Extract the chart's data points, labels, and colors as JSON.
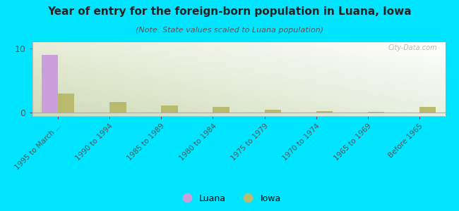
{
  "title": "Year of entry for the foreign-born population in Luana, Iowa",
  "subtitle": "(Note: State values scaled to Luana population)",
  "categories": [
    "1995 to March ...",
    "1990 to 1994",
    "1985 to 1989",
    "1980 to 1984",
    "1975 to 1979",
    "1970 to 1974",
    "1965 to 1969",
    "Before 1965"
  ],
  "luana_values": [
    9.0,
    0.0,
    0.0,
    0.0,
    0.0,
    0.0,
    0.0,
    0.0
  ],
  "iowa_values": [
    3.0,
    1.7,
    1.1,
    0.9,
    0.5,
    0.3,
    0.2,
    0.9
  ],
  "luana_color": "#c9a0dc",
  "iowa_color": "#b8bb6e",
  "background_color": "#00e5ff",
  "plot_bg_top_left": "#e8edd8",
  "plot_bg_top_right": "#ffffff",
  "plot_bg_bottom_left": "#d0dbb8",
  "plot_bg_bottom_right": "#e8f0e0",
  "ylim": [
    -0.5,
    11
  ],
  "yticks": [
    0,
    10
  ],
  "bar_width": 0.32,
  "watermark": "City-Data.com",
  "legend_luana": "Luana",
  "legend_iowa": "Iowa",
  "title_fontsize": 11,
  "subtitle_fontsize": 8
}
